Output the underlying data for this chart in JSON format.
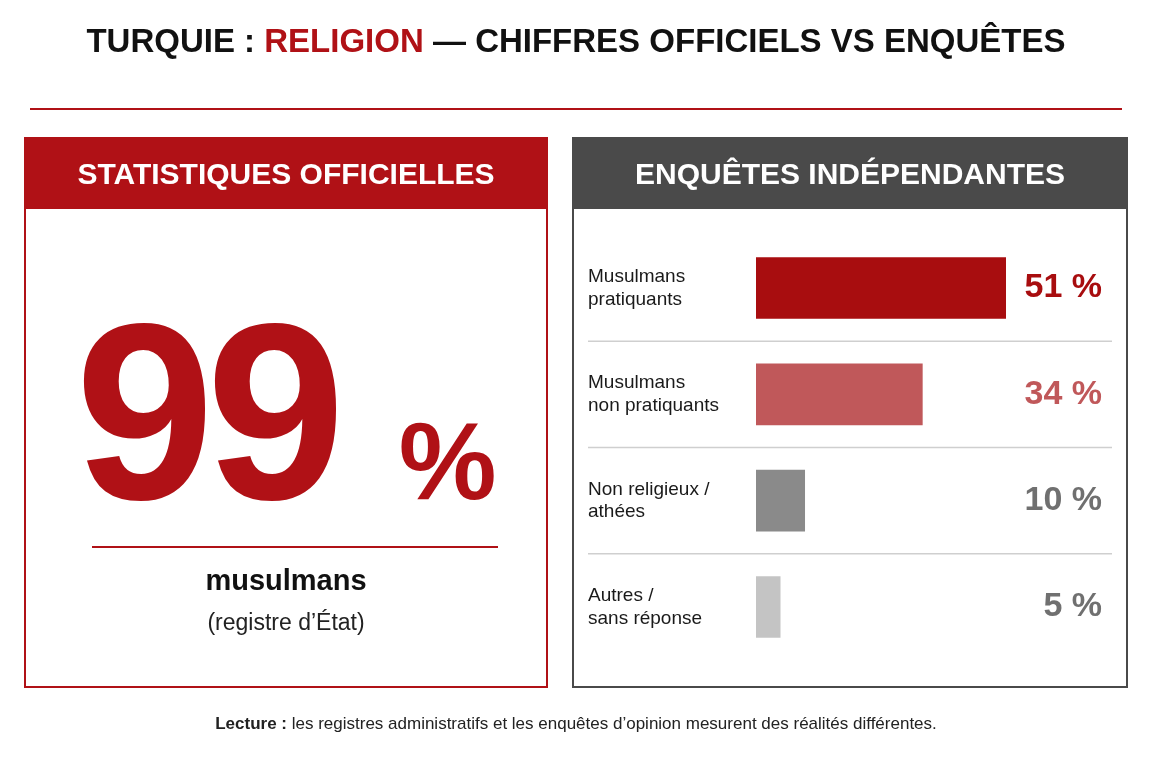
{
  "chart_data": [
    {
      "type": "other",
      "title": "TURQUIE : RELIGION — CHIFFRES OFFICIELS VS ENQUÊTES",
      "subtitle": "STATISTIQUES OFFICIELLES",
      "values": [
        99
      ],
      "value_labels": [
        "99 %"
      ],
      "color": "#b01116",
      "annotations": [
        "musulmans",
        "(registre d’État)"
      ]
    },
    {
      "type": "bar",
      "orientation": "horizontal",
      "title": "ENQUÊTES INDÉPENDANTES",
      "categories": [
        "Musulmans pratiquants",
        "Musulmans non pratiquants",
        "Non religieux / athées",
        "Autres / sans réponse"
      ],
      "values": [
        51,
        34,
        10,
        5
      ],
      "colors": [
        "#a80d0f",
        "#c0585a",
        "#8a8a8a",
        "#c4c4c4"
      ],
      "value_labels": [
        "51 %",
        "34 %",
        "10 %",
        "5 %"
      ],
      "legend": false,
      "tick_labels": "y",
      "annotations": [
        "Lecture : les registres administratifs et les enquêtes d’opinion mesurent des réalités différentes."
      ]
    }
  ]
}
